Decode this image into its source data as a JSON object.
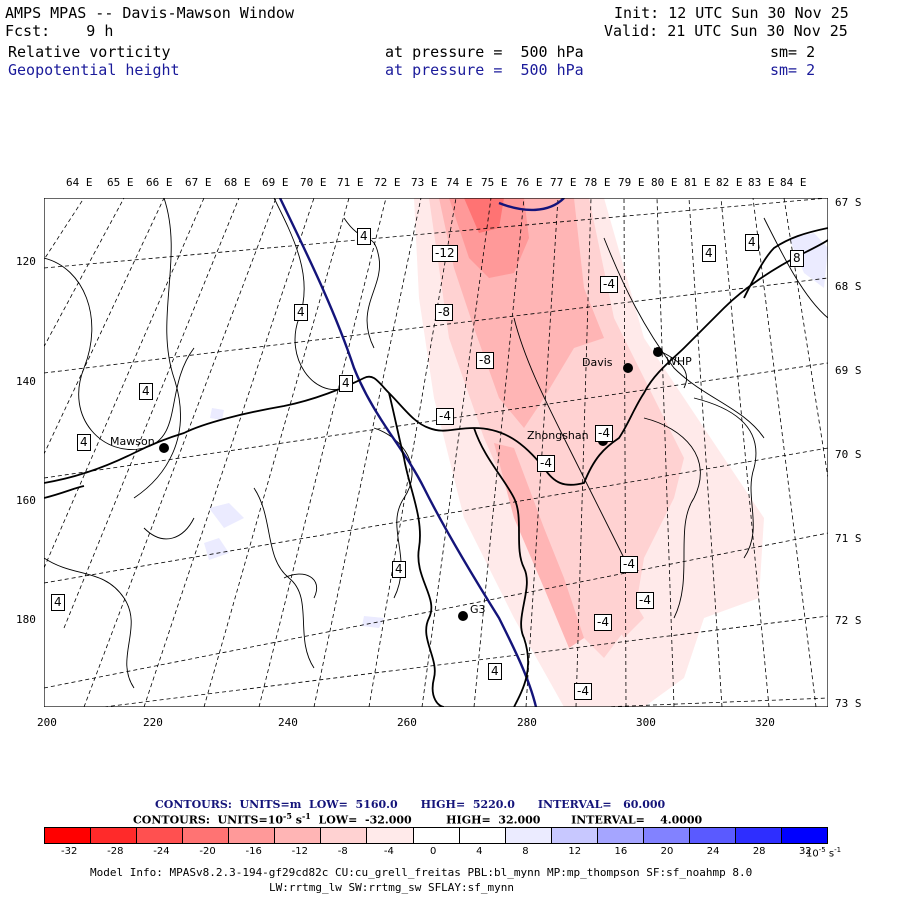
{
  "header": {
    "title": "AMPS MPAS -- Davis-Mawson Window",
    "fcst": "Fcst:    9 h",
    "init": "Init: 12 UTC Sun 30 Nov 25",
    "valid": "Valid: 21 UTC Sun 30 Nov 25",
    "field1": "Relative vorticity",
    "field1_level": "at pressure =  500 hPa",
    "field1_sm": "sm= 2",
    "field2": "Geopotential height",
    "field2_level": "at pressure =  500 hPa",
    "field2_sm": "sm= 2"
  },
  "map": {
    "lon_labels": [
      "64 E",
      "65 E",
      "66 E",
      "67 E",
      "68 E",
      "69 E",
      "70 E",
      "71 E",
      "72 E",
      "73 E",
      "74 E",
      "75 E",
      "76 E",
      "77 E",
      "78 E",
      "79 E",
      "80 E",
      "81 E",
      "82 E",
      "83 E",
      "84 E"
    ],
    "lat_labels": [
      "67 S",
      "68 S",
      "69 S",
      "70 S",
      "71 S",
      "72 S",
      "73 S"
    ],
    "x_ticks": [
      "200",
      "220",
      "240",
      "260",
      "280",
      "300",
      "320"
    ],
    "y_ticks": [
      "120",
      "140",
      "160",
      "180"
    ],
    "stations": [
      {
        "name": "Mawson"
      },
      {
        "name": "Davis"
      },
      {
        "name": "WHP"
      },
      {
        "name": "Zhongshan"
      },
      {
        "name": "G3"
      }
    ],
    "contour_labels": [
      "4",
      "4",
      "4",
      "4",
      "4",
      "4",
      "4",
      "4",
      "4",
      "4",
      "8",
      "-12",
      "-8",
      "-8",
      "-4",
      "-4",
      "-4",
      "-4",
      "-4",
      "-4",
      "-4",
      "-4"
    ]
  },
  "legend": {
    "height_contours": "CONTOURS:  UNITS=m  LOW=  5160.0      HIGH=  5220.0      INTERVAL=   60.000",
    "vort_contours_a": "CONTOURS:  UNITS=10",
    "vort_contours_exp": "-5",
    "vort_contours_b": " s",
    "vort_contours_exp2": "-1",
    "vort_contours_c": "  LOW=  -32.000         HIGH=  32.000        INTERVAL=    4.0000",
    "colorbar_labels": [
      "-32",
      "-28",
      "-24",
      "-20",
      "-16",
      "-12",
      "-8",
      "-4",
      "0",
      "4",
      "8",
      "12",
      "16",
      "20",
      "24",
      "28",
      "32"
    ],
    "colorbar_colors": [
      "#ff0000",
      "#ff2a2a",
      "#ff5050",
      "#ff7373",
      "#ff9999",
      "#ffb5b5",
      "#ffd2d2",
      "#ffeaea",
      "#ffffff",
      "#ffffff",
      "#ebebff",
      "#c8c8ff",
      "#a5a5ff",
      "#8282ff",
      "#5a5aff",
      "#2e2eff",
      "#0000ff"
    ],
    "units": "10",
    "units_exp": "-5",
    "units_b": " s",
    "units_exp2": "-1"
  },
  "model_info": {
    "line1": "Model Info: MPASv8.2.3-194-gf29cd82c CU:cu_grell_freitas PBL:bl_mynn MP:mp_thompson SF:sf_noahmp 8.0",
    "line2": "LW:rrtmg_lw SW:rrtmg_sw SFLAY:sf_mynn"
  }
}
